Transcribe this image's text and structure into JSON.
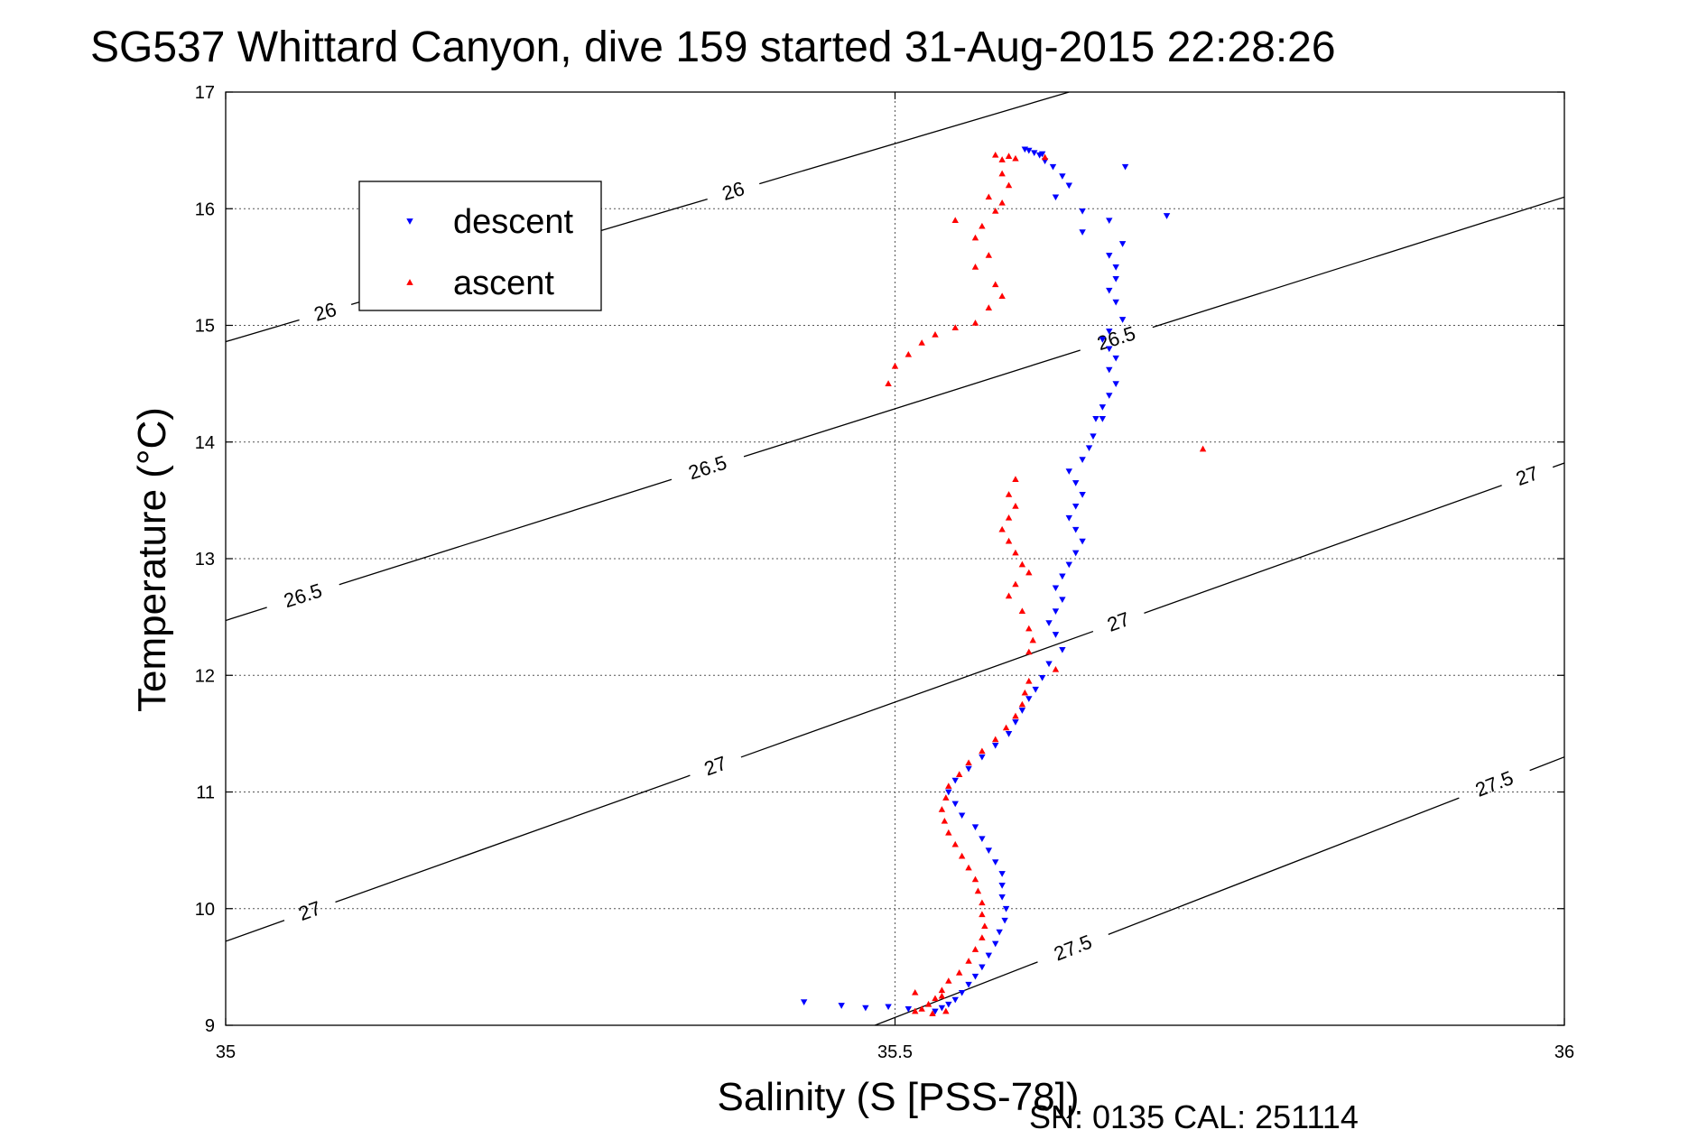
{
  "chart_data": {
    "type": "scatter",
    "title": "SG537 Whittard Canyon, dive 159 started 31-Aug-2015 22:28:26",
    "xlabel": "Salinity (S [PSS-78])",
    "ylabel": "Temperature (°C)",
    "xlim": [
      35,
      36
    ],
    "ylim": [
      9,
      17
    ],
    "x_ticks": [
      "35",
      "35.5",
      "36"
    ],
    "y_ticks": [
      "9",
      "10",
      "11",
      "12",
      "13",
      "14",
      "15",
      "16",
      "17"
    ],
    "grid": true,
    "legend_position": "upper-left",
    "footer": "SN: 0135  CAL: 251114",
    "contours": [
      {
        "label": "26",
        "points": [
          [
            35,
            14.86
          ],
          [
            35.63,
            17.0
          ]
        ],
        "label_positions": [
          [
            35.075,
            15.09
          ],
          [
            35.38,
            16.12
          ]
        ]
      },
      {
        "label": "26.5",
        "points": [
          [
            35,
            12.47
          ],
          [
            36,
            16.1
          ]
        ],
        "label_positions": [
          [
            35.06,
            12.6
          ],
          [
            35.36,
            13.78
          ],
          [
            35.665,
            14.9
          ]
        ]
      },
      {
        "label": "27",
        "points": [
          [
            35,
            9.72
          ],
          [
            36,
            13.82
          ]
        ],
        "label_positions": [
          [
            35.065,
            9.91
          ],
          [
            35.365,
            11.25
          ],
          [
            35.665,
            12.52
          ],
          [
            35.97,
            13.78
          ]
        ]
      },
      {
        "label": "27.5",
        "points": [
          [
            35.485,
            9.0
          ],
          [
            36,
            11.3
          ]
        ],
        "label_positions": [
          [
            35.635,
            9.6
          ],
          [
            35.95,
            11.0
          ]
        ]
      }
    ],
    "series": [
      {
        "name": "descent",
        "color": "#0000ff",
        "marker": "down-triangle",
        "points": [
          [
            35.597,
            16.51
          ],
          [
            35.6,
            16.5
          ],
          [
            35.604,
            16.48
          ],
          [
            35.608,
            16.46
          ],
          [
            35.612,
            16.41
          ],
          [
            35.618,
            16.36
          ],
          [
            35.625,
            16.28
          ],
          [
            35.63,
            16.2
          ],
          [
            35.62,
            16.1
          ],
          [
            35.64,
            15.98
          ],
          [
            35.66,
            15.9
          ],
          [
            35.64,
            15.8
          ],
          [
            35.67,
            15.7
          ],
          [
            35.66,
            15.6
          ],
          [
            35.665,
            15.5
          ],
          [
            35.665,
            15.4
          ],
          [
            35.66,
            15.3
          ],
          [
            35.665,
            15.2
          ],
          [
            35.67,
            15.05
          ],
          [
            35.66,
            14.95
          ],
          [
            35.655,
            14.88
          ],
          [
            35.66,
            14.8
          ],
          [
            35.665,
            14.72
          ],
          [
            35.66,
            14.62
          ],
          [
            35.665,
            14.5
          ],
          [
            35.66,
            14.4
          ],
          [
            35.655,
            14.3
          ],
          [
            35.65,
            14.2
          ],
          [
            35.648,
            14.05
          ],
          [
            35.645,
            13.95
          ],
          [
            35.64,
            13.85
          ],
          [
            35.63,
            13.75
          ],
          [
            35.635,
            13.65
          ],
          [
            35.64,
            13.55
          ],
          [
            35.635,
            13.45
          ],
          [
            35.63,
            13.35
          ],
          [
            35.635,
            13.25
          ],
          [
            35.64,
            13.15
          ],
          [
            35.635,
            13.05
          ],
          [
            35.63,
            12.95
          ],
          [
            35.625,
            12.85
          ],
          [
            35.62,
            12.75
          ],
          [
            35.625,
            12.65
          ],
          [
            35.62,
            12.55
          ],
          [
            35.615,
            12.45
          ],
          [
            35.62,
            12.35
          ],
          [
            35.625,
            12.22
          ],
          [
            35.615,
            12.1
          ],
          [
            35.61,
            11.98
          ],
          [
            35.605,
            11.88
          ],
          [
            35.6,
            11.8
          ],
          [
            35.595,
            11.7
          ],
          [
            35.59,
            11.6
          ],
          [
            35.585,
            11.5
          ],
          [
            35.575,
            11.4
          ],
          [
            35.565,
            11.3
          ],
          [
            35.555,
            11.2
          ],
          [
            35.545,
            11.1
          ],
          [
            35.54,
            11.0
          ],
          [
            35.545,
            10.9
          ],
          [
            35.55,
            10.8
          ],
          [
            35.56,
            10.7
          ],
          [
            35.565,
            10.6
          ],
          [
            35.57,
            10.5
          ],
          [
            35.575,
            10.4
          ],
          [
            35.58,
            10.3
          ],
          [
            35.58,
            10.2
          ],
          [
            35.58,
            10.1
          ],
          [
            35.583,
            10.0
          ],
          [
            35.582,
            9.9
          ],
          [
            35.578,
            9.8
          ],
          [
            35.575,
            9.7
          ],
          [
            35.57,
            9.6
          ],
          [
            35.565,
            9.5
          ],
          [
            35.56,
            9.42
          ],
          [
            35.555,
            9.35
          ],
          [
            35.55,
            9.28
          ],
          [
            35.545,
            9.22
          ],
          [
            35.54,
            9.18
          ],
          [
            35.535,
            9.15
          ],
          [
            35.53,
            9.12
          ],
          [
            35.478,
            9.15
          ],
          [
            35.495,
            9.16
          ],
          [
            35.51,
            9.14
          ],
          [
            35.432,
            9.2
          ],
          [
            35.46,
            9.17
          ],
          [
            35.672,
            16.36
          ],
          [
            35.703,
            15.94
          ],
          [
            35.655,
            14.2
          ],
          [
            35.61,
            16.47
          ]
        ]
      },
      {
        "name": "ascent",
        "color": "#ff0000",
        "marker": "up-triangle",
        "points": [
          [
            35.575,
            16.46
          ],
          [
            35.58,
            16.42
          ],
          [
            35.585,
            16.45
          ],
          [
            35.59,
            16.43
          ],
          [
            35.612,
            16.44
          ],
          [
            35.58,
            16.3
          ],
          [
            35.585,
            16.2
          ],
          [
            35.57,
            16.1
          ],
          [
            35.58,
            16.05
          ],
          [
            35.575,
            15.98
          ],
          [
            35.545,
            15.9
          ],
          [
            35.565,
            15.85
          ],
          [
            35.56,
            15.75
          ],
          [
            35.57,
            15.6
          ],
          [
            35.56,
            15.5
          ],
          [
            35.575,
            15.35
          ],
          [
            35.58,
            15.25
          ],
          [
            35.57,
            15.15
          ],
          [
            35.56,
            15.02
          ],
          [
            35.545,
            14.98
          ],
          [
            35.53,
            14.92
          ],
          [
            35.52,
            14.85
          ],
          [
            35.51,
            14.75
          ],
          [
            35.5,
            14.65
          ],
          [
            35.495,
            14.5
          ],
          [
            35.73,
            13.94
          ],
          [
            35.59,
            13.68
          ],
          [
            35.585,
            13.55
          ],
          [
            35.59,
            13.45
          ],
          [
            35.585,
            13.35
          ],
          [
            35.58,
            13.25
          ],
          [
            35.585,
            13.15
          ],
          [
            35.59,
            13.05
          ],
          [
            35.595,
            12.95
          ],
          [
            35.6,
            12.88
          ],
          [
            35.59,
            12.78
          ],
          [
            35.585,
            12.68
          ],
          [
            35.595,
            12.55
          ],
          [
            35.6,
            12.4
          ],
          [
            35.603,
            12.3
          ],
          [
            35.6,
            12.2
          ],
          [
            35.62,
            12.05
          ],
          [
            35.6,
            11.95
          ],
          [
            35.597,
            11.85
          ],
          [
            35.595,
            11.75
          ],
          [
            35.59,
            11.65
          ],
          [
            35.583,
            11.55
          ],
          [
            35.575,
            11.45
          ],
          [
            35.565,
            11.35
          ],
          [
            35.555,
            11.25
          ],
          [
            35.548,
            11.15
          ],
          [
            35.54,
            11.05
          ],
          [
            35.538,
            10.95
          ],
          [
            35.535,
            10.85
          ],
          [
            35.537,
            10.75
          ],
          [
            35.54,
            10.65
          ],
          [
            35.545,
            10.55
          ],
          [
            35.55,
            10.45
          ],
          [
            35.555,
            10.35
          ],
          [
            35.56,
            10.25
          ],
          [
            35.562,
            10.15
          ],
          [
            35.565,
            10.05
          ],
          [
            35.565,
            9.95
          ],
          [
            35.567,
            9.85
          ],
          [
            35.565,
            9.75
          ],
          [
            35.56,
            9.65
          ],
          [
            35.555,
            9.55
          ],
          [
            35.548,
            9.45
          ],
          [
            35.54,
            9.38
          ],
          [
            35.535,
            9.3
          ],
          [
            35.53,
            9.23
          ],
          [
            35.525,
            9.18
          ],
          [
            35.52,
            9.14
          ],
          [
            35.515,
            9.12
          ],
          [
            35.528,
            9.1
          ],
          [
            35.538,
            9.12
          ],
          [
            35.535,
            9.25
          ],
          [
            35.515,
            9.28
          ]
        ]
      }
    ]
  }
}
